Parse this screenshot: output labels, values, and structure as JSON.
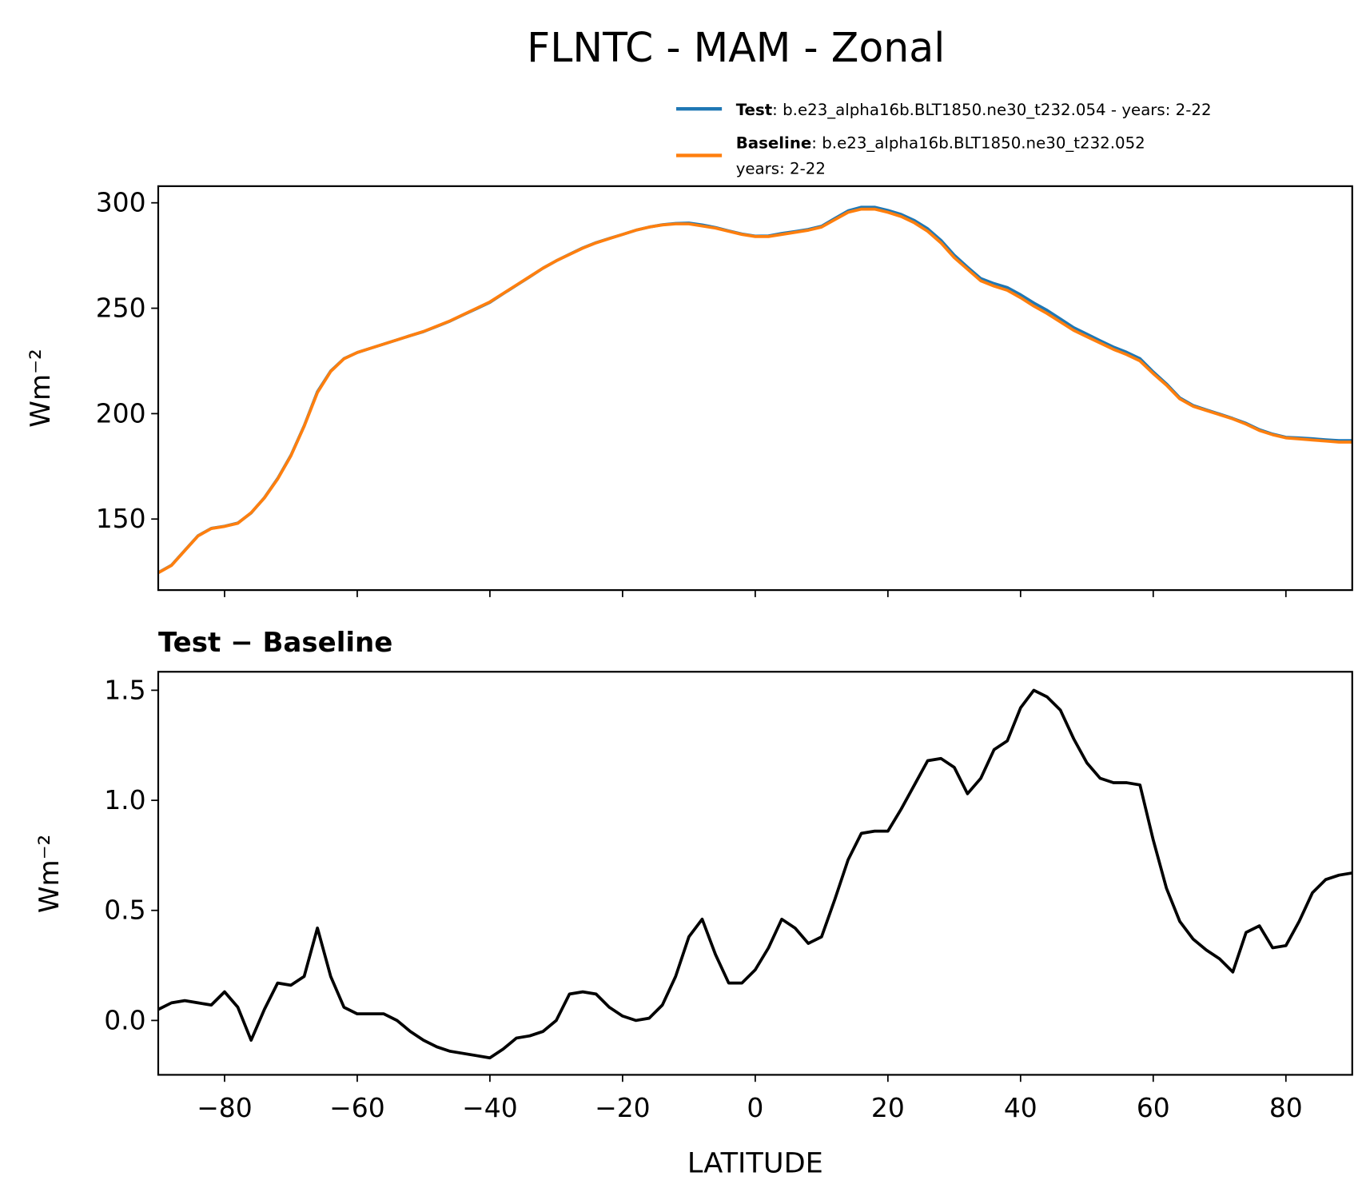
{
  "chart_data": [
    {
      "type": "line",
      "title": "FLNTC - MAM - Zonal",
      "ylabel": "Wm⁻²",
      "x": [
        -90,
        -88,
        -86,
        -84,
        -82,
        -80,
        -78,
        -76,
        -74,
        -72,
        -70,
        -68,
        -66,
        -64,
        -62,
        -60,
        -58,
        -56,
        -54,
        -52,
        -50,
        -48,
        -46,
        -44,
        -42,
        -40,
        -38,
        -36,
        -34,
        -32,
        -30,
        -28,
        -26,
        -24,
        -22,
        -20,
        -18,
        -16,
        -14,
        -12,
        -10,
        -8,
        -6,
        -4,
        -2,
        0,
        2,
        4,
        6,
        8,
        10,
        12,
        14,
        16,
        18,
        20,
        22,
        24,
        26,
        28,
        30,
        32,
        34,
        36,
        38,
        40,
        42,
        44,
        46,
        48,
        50,
        52,
        54,
        56,
        58,
        60,
        62,
        64,
        66,
        68,
        70,
        72,
        74,
        76,
        78,
        80,
        82,
        84,
        86,
        88,
        90
      ],
      "series": [
        {
          "name": "Test",
          "description": [
            ": b.e23_alpha16b.BLT1850.ne30_t232.054 - years: 2-22"
          ],
          "color": "#1f77b4",
          "values": [
            124.6,
            128.1,
            135.1,
            142.1,
            145.6,
            146.6,
            148.1,
            152.9,
            160.1,
            169.2,
            180.2,
            194.2,
            210.4,
            220.2,
            226.1,
            229,
            231,
            233,
            235,
            237,
            238.9,
            241.4,
            243.9,
            246.9,
            249.8,
            252.8,
            256.9,
            260.9,
            264.9,
            269,
            272.5,
            275.6,
            278.6,
            281.1,
            283.1,
            285,
            287,
            288.5,
            289.6,
            290.2,
            290.4,
            289.5,
            288.3,
            286.7,
            285.2,
            284.2,
            284.3,
            285.5,
            286.4,
            287.4,
            288.9,
            292.6,
            296.2,
            297.9,
            297.9,
            296.4,
            294.5,
            291.6,
            287.7,
            282.2,
            275.2,
            269.5,
            264.1,
            261.7,
            259.8,
            256.4,
            252.5,
            249,
            244.9,
            240.8,
            237.7,
            234.6,
            231.6,
            229.1,
            226.1,
            219.8,
            214.1,
            207.5,
            203.9,
            201.8,
            199.8,
            197.7,
            195.4,
            192.4,
            190.3,
            188.8,
            188.5,
            188.1,
            187.6,
            187.2,
            187.2
          ]
        },
        {
          "name": "Baseline",
          "description": [
            ": b.e23_alpha16b.BLT1850.ne30_t232.052",
            "years: 2-22"
          ],
          "color": "#ff7f0e",
          "values": [
            124.5,
            128,
            135,
            142,
            145.5,
            146.5,
            148,
            153,
            160,
            169,
            180,
            194,
            210,
            220,
            226,
            229,
            231,
            233,
            235,
            237,
            239,
            241.5,
            244,
            247,
            250,
            253,
            257,
            261,
            265,
            269,
            272.5,
            275.5,
            278.5,
            281,
            283,
            285,
            287,
            288.5,
            289.5,
            290,
            290,
            289,
            288,
            286.5,
            285,
            284,
            284,
            285,
            286,
            287,
            288.5,
            292,
            295.5,
            297,
            297,
            295.5,
            293.5,
            290.5,
            286.5,
            281,
            274,
            268.5,
            263,
            260.5,
            258.5,
            255,
            251,
            247.5,
            243.5,
            239.5,
            236.5,
            233.5,
            230.5,
            228,
            225,
            219,
            213.5,
            207,
            203.5,
            201.5,
            199.5,
            197.5,
            195,
            192,
            190,
            188.5,
            188,
            187.5,
            187,
            186.5,
            186.5
          ]
        }
      ],
      "xlim": [
        -90,
        90
      ],
      "ylim": [
        116.3,
        307.9
      ],
      "xticks": [
        -80,
        -60,
        -40,
        -20,
        0,
        20,
        40,
        60,
        80
      ],
      "yticks": [
        150,
        200,
        250,
        300
      ]
    },
    {
      "type": "line",
      "subtitle": "Test − Baseline",
      "xlabel": "LATITUDE",
      "ylabel": "Wm⁻²",
      "x": [
        -90,
        -88,
        -86,
        -84,
        -82,
        -80,
        -78,
        -76,
        -74,
        -72,
        -70,
        -68,
        -66,
        -64,
        -62,
        -60,
        -58,
        -56,
        -54,
        -52,
        -50,
        -48,
        -46,
        -44,
        -42,
        -40,
        -38,
        -36,
        -34,
        -32,
        -30,
        -28,
        -26,
        -24,
        -22,
        -20,
        -18,
        -16,
        -14,
        -12,
        -10,
        -8,
        -6,
        -4,
        -2,
        0,
        2,
        4,
        6,
        8,
        10,
        12,
        14,
        16,
        18,
        20,
        22,
        24,
        26,
        28,
        30,
        32,
        34,
        36,
        38,
        40,
        42,
        44,
        46,
        48,
        50,
        52,
        54,
        56,
        58,
        60,
        62,
        64,
        66,
        68,
        70,
        72,
        74,
        76,
        78,
        80,
        82,
        84,
        86,
        88,
        90
      ],
      "series": [
        {
          "color": "#000000",
          "values": [
            0.05,
            0.08,
            0.09,
            0.08,
            0.07,
            0.13,
            0.06,
            -0.09,
            0.05,
            0.17,
            0.16,
            0.2,
            0.42,
            0.2,
            0.06,
            0.03,
            0.03,
            0.03,
            0.0,
            -0.05,
            -0.09,
            -0.12,
            -0.14,
            -0.15,
            -0.16,
            -0.17,
            -0.13,
            -0.08,
            -0.07,
            -0.05,
            0.0,
            0.12,
            0.13,
            0.12,
            0.06,
            0.02,
            0.0,
            0.01,
            0.07,
            0.2,
            0.38,
            0.46,
            0.3,
            0.17,
            0.17,
            0.23,
            0.33,
            0.46,
            0.42,
            0.35,
            0.38,
            0.55,
            0.73,
            0.85,
            0.86,
            0.86,
            0.96,
            1.07,
            1.18,
            1.19,
            1.15,
            1.03,
            1.1,
            1.23,
            1.27,
            1.42,
            1.5,
            1.47,
            1.41,
            1.28,
            1.17,
            1.1,
            1.08,
            1.08,
            1.07,
            0.82,
            0.6,
            0.45,
            0.37,
            0.32,
            0.28,
            0.22,
            0.4,
            0.43,
            0.33,
            0.34,
            0.45,
            0.58,
            0.64,
            0.66,
            0.67
          ]
        }
      ],
      "xlim": [
        -90,
        90
      ],
      "ylim": [
        -0.247,
        1.584
      ],
      "xticks": [
        {
          "value": -80,
          "label": "−80"
        },
        {
          "value": -60,
          "label": "−60"
        },
        {
          "value": -40,
          "label": "−40"
        },
        {
          "value": -20,
          "label": "−20"
        },
        0,
        20,
        40,
        60,
        80
      ],
      "yticks": [
        {
          "value": 0,
          "label": "0.0"
        },
        0.5,
        {
          "value": 1,
          "label": "1.0"
        },
        1.5
      ]
    }
  ]
}
